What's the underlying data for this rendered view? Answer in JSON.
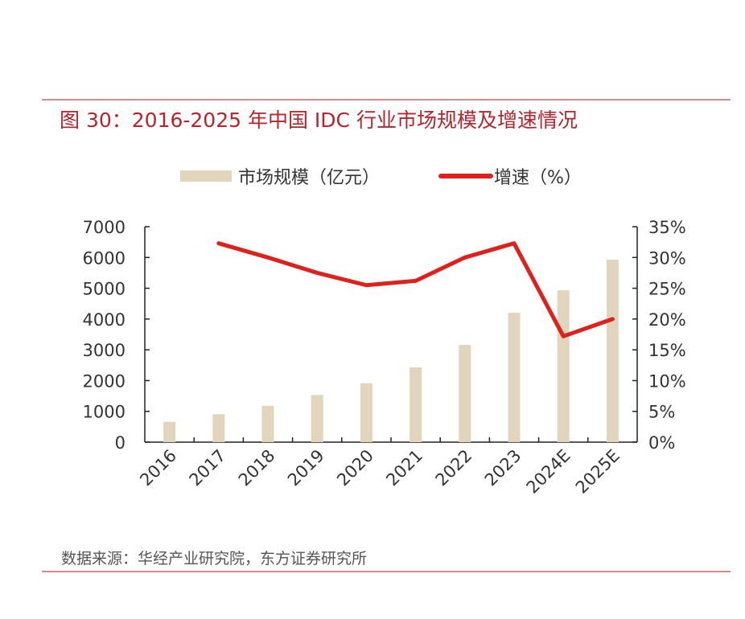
{
  "chart_data": {
    "type": "bar+line",
    "title": "图 30：2016-2025 年中国 IDC 行业市场规模及增速情况",
    "categories": [
      "2016",
      "2017",
      "2018",
      "2019",
      "2020",
      "2021",
      "2022",
      "2023",
      "2024E",
      "2025E"
    ],
    "series": [
      {
        "name": "市场规模（亿元）",
        "type": "bar",
        "axis": "left",
        "color": "#e2d5bd",
        "values": [
          660,
          906,
          1183,
          1533,
          1914,
          2428,
          3159,
          4204,
          4935,
          5927
        ]
      },
      {
        "name": "增速（%）",
        "type": "line",
        "axis": "right",
        "color": "#e0201b",
        "values": [
          null,
          32.3,
          30.0,
          27.5,
          25.5,
          26.2,
          30.0,
          32.3,
          17.2,
          20.0
        ]
      }
    ],
    "left_axis": {
      "ylim": [
        0,
        7000
      ],
      "ticks": [
        "0",
        "1000",
        "2000",
        "3000",
        "4000",
        "5000",
        "6000",
        "7000"
      ]
    },
    "right_axis": {
      "ylim": [
        0,
        35
      ],
      "ticks": [
        "0%",
        "5%",
        "10%",
        "15%",
        "20%",
        "25%",
        "30%",
        "35%"
      ]
    },
    "grid": false,
    "legend": "top-center"
  },
  "source": "数据来源：华经产业研究院，东方证券研究所"
}
